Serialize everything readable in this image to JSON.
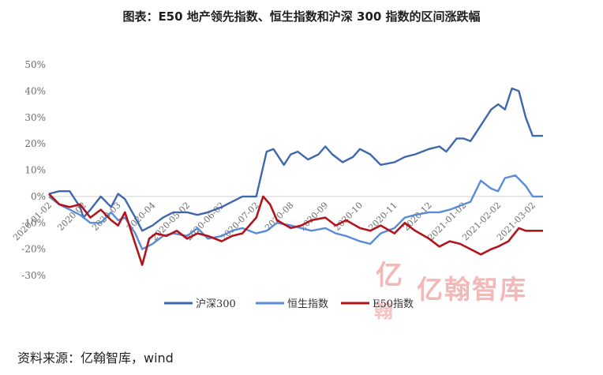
{
  "title": "图表：E50 地产领先指数、恒生指数和沪深 300 指数的区间涨跌幅",
  "source": "资料来源：亿翰智库，wind",
  "watermark": {
    "text": "亿翰智库",
    "logo_char": "亿",
    "logo_sub": "翰"
  },
  "chart_data": {
    "type": "line",
    "title": "图表：E50 地产领先指数、恒生指数和沪深 300 指数的区间涨跌幅",
    "xlabel": "",
    "ylabel": "",
    "ylim": [
      -30,
      50
    ],
    "y_ticks": [
      "50%",
      "40%",
      "30%",
      "20%",
      "10%",
      "0%",
      "-10%",
      "-20%",
      "-30%"
    ],
    "y_tick_values": [
      50,
      40,
      30,
      20,
      10,
      0,
      -10,
      -20,
      -30
    ],
    "x_tick_labels": [
      "2020-01-02",
      "2020-02",
      "2020-03",
      "2020-04",
      "2020-05-02",
      "2020-06-02",
      "2020-07-02",
      "2020-08",
      "2020-09",
      "2020-10",
      "2020-11",
      "2020-12",
      "2021-01-02",
      "2021-02-02",
      "2021-03-02"
    ],
    "x_domain": [
      0,
      14.3
    ],
    "legend": "bottom",
    "grid": false,
    "series": [
      {
        "name": "沪深300",
        "color": "#3f67ad",
        "x": [
          0,
          0.3,
          0.6,
          0.9,
          1.0,
          1.2,
          1.5,
          1.8,
          2.0,
          2.2,
          2.5,
          2.7,
          3.0,
          3.3,
          3.6,
          4.0,
          4.3,
          4.6,
          5.0,
          5.3,
          5.6,
          6.0,
          6.3,
          6.5,
          6.8,
          7.0,
          7.2,
          7.5,
          7.8,
          8.0,
          8.2,
          8.5,
          8.8,
          9.0,
          9.3,
          9.6,
          10.0,
          10.3,
          10.6,
          11.0,
          11.3,
          11.5,
          11.8,
          12.0,
          12.2,
          12.5,
          12.8,
          13.0,
          13.2,
          13.4,
          13.6,
          13.8,
          14.0,
          14.3
        ],
        "values": [
          1,
          2,
          2,
          -4,
          -8,
          -5,
          0,
          -4,
          1,
          -1,
          -8,
          -13,
          -11,
          -8,
          -6,
          -6,
          -7,
          -6,
          -4,
          -2,
          0,
          0,
          17,
          18,
          12,
          16,
          17,
          14,
          16,
          19,
          16,
          13,
          15,
          18,
          16,
          12,
          13,
          15,
          16,
          18,
          19,
          17,
          22,
          22,
          21,
          27,
          33,
          35,
          33,
          41,
          40,
          30,
          23,
          23
        ]
      },
      {
        "name": "恒生指数",
        "color": "#5a8bd6",
        "x": [
          0,
          0.3,
          0.6,
          0.9,
          1.2,
          1.5,
          1.8,
          2.0,
          2.2,
          2.5,
          2.7,
          3.0,
          3.3,
          3.6,
          4.0,
          4.3,
          4.6,
          5.0,
          5.3,
          5.6,
          6.0,
          6.3,
          6.6,
          7.0,
          7.3,
          7.6,
          8.0,
          8.3,
          8.6,
          9.0,
          9.3,
          9.6,
          10.0,
          10.3,
          10.6,
          11.0,
          11.3,
          11.6,
          12.0,
          12.2,
          12.5,
          12.8,
          13.0,
          13.2,
          13.5,
          13.8,
          14.0,
          14.3
        ],
        "values": [
          0,
          -3,
          -5,
          -7,
          -10,
          -10,
          -6,
          -9,
          -8,
          -14,
          -20,
          -18,
          -15,
          -14,
          -15,
          -12,
          -16,
          -15,
          -13,
          -12,
          -14,
          -13,
          -10,
          -11,
          -12,
          -13,
          -12,
          -14,
          -15,
          -17,
          -18,
          -14,
          -12,
          -8,
          -7,
          -6,
          -6,
          -5,
          -3,
          -2,
          6,
          3,
          2,
          7,
          8,
          4,
          0,
          0
        ]
      },
      {
        "name": "E50指数",
        "color": "#b3141c",
        "x": [
          0,
          0.3,
          0.6,
          0.9,
          1.2,
          1.5,
          1.8,
          2.0,
          2.2,
          2.5,
          2.7,
          2.9,
          3.1,
          3.4,
          3.7,
          4.0,
          4.3,
          4.6,
          5.0,
          5.3,
          5.6,
          6.0,
          6.2,
          6.4,
          6.6,
          7.0,
          7.3,
          7.6,
          8.0,
          8.3,
          8.6,
          9.0,
          9.3,
          9.6,
          10.0,
          10.3,
          10.6,
          11.0,
          11.3,
          11.6,
          11.9,
          12.2,
          12.5,
          12.8,
          13.0,
          13.3,
          13.6,
          13.8,
          14.0,
          14.3
        ],
        "values": [
          1,
          -3,
          -4,
          -3,
          -8,
          -5,
          -9,
          -11,
          -6,
          -18,
          -26,
          -16,
          -14,
          -15,
          -13,
          -16,
          -14,
          -15,
          -17,
          -15,
          -14,
          -8,
          0,
          -3,
          -9,
          -12,
          -11,
          -9,
          -8,
          -11,
          -9,
          -12,
          -13,
          -11,
          -14,
          -10,
          -13,
          -16,
          -19,
          -17,
          -18,
          -20,
          -22,
          -20,
          -19,
          -17,
          -12,
          -13,
          -13,
          -13
        ]
      }
    ]
  }
}
